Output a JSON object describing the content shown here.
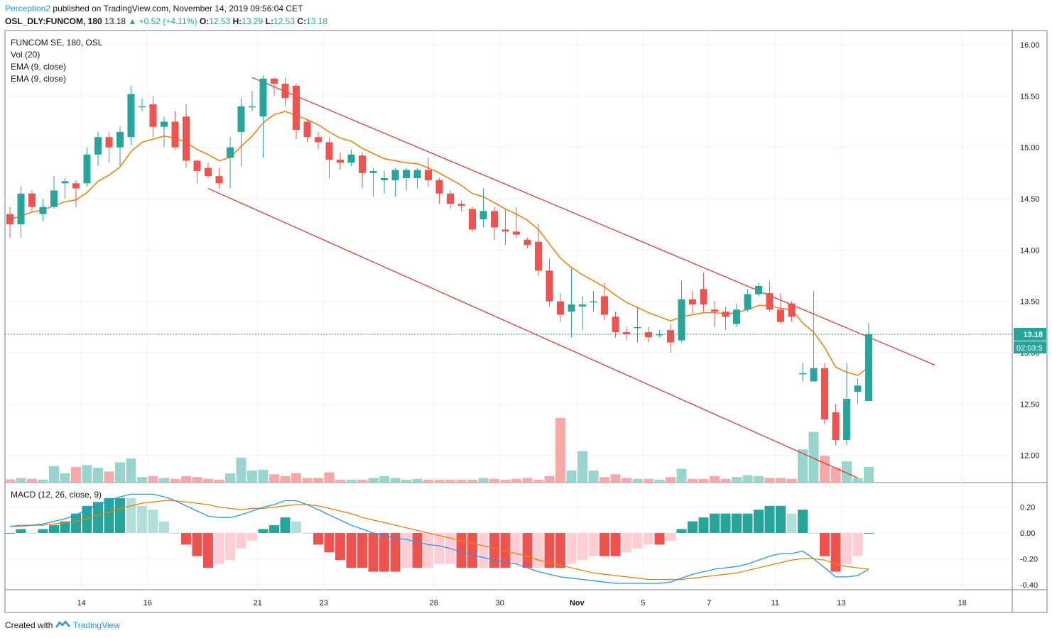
{
  "header": {
    "author": "Perception2",
    "published": "published on TradingView.com, November 14, 2019 09:56:04 CET",
    "symbol": "OSL_DLY:FUNCOM, 180",
    "last": "13.18",
    "change": "+0.52 (+4.11%)",
    "o_label": "O:",
    "o": "12.53",
    "h_label": "H:",
    "h": "13.29",
    "l_label": "L:",
    "l": "12.53",
    "c_label": "C:",
    "c": "13.18"
  },
  "legend": {
    "title": "FUNCOM SE, 180, OSL",
    "vol": "Vol (20)",
    "ema1": "EMA (9, close)",
    "ema2": "EMA (9, close)",
    "macd": "MACD (12, 26, close, 9)"
  },
  "price_badge": "13.18",
  "timer_badge": "02:03:5",
  "footer": {
    "created": "Created with",
    "brand": "TradingView"
  },
  "colors": {
    "up": "#26a69a",
    "down": "#ef5350",
    "ema": "#f57c00",
    "macd": "#2196f3",
    "signal": "#f57c00",
    "channel": "#e53935"
  },
  "chart_data": {
    "type": "candlestick",
    "title": "FUNCOM SE, 180, OSL",
    "ylim": [
      11.75,
      16.1
    ],
    "y_ticks": [
      "16.00",
      "15.50",
      "15.00",
      "14.50",
      "14.00",
      "13.50",
      "13.00",
      "12.50",
      "12.00"
    ],
    "x_ticks": [
      "14",
      "16",
      "21",
      "23",
      "28",
      "30",
      "Nov",
      "5",
      "7",
      "11",
      "13",
      "18"
    ],
    "candles": [
      [
        14.35,
        14.25,
        14.42,
        14.12
      ],
      [
        14.25,
        14.55,
        14.62,
        14.12
      ],
      [
        14.55,
        14.42,
        14.58,
        14.38
      ],
      [
        14.35,
        14.42,
        14.5,
        14.28
      ],
      [
        14.42,
        14.58,
        14.72,
        14.4
      ],
      [
        14.65,
        14.67,
        14.7,
        14.5
      ],
      [
        14.65,
        14.6,
        14.68,
        14.42
      ],
      [
        14.65,
        14.93,
        15.0,
        14.62
      ],
      [
        14.93,
        15.1,
        15.15,
        14.82
      ],
      [
        15.1,
        15.0,
        15.15,
        14.85
      ],
      [
        15.0,
        15.15,
        15.2,
        14.82
      ],
      [
        15.1,
        15.52,
        15.6,
        15.02
      ],
      [
        15.4,
        15.4,
        15.48,
        15.35
      ],
      [
        15.42,
        15.2,
        15.5,
        15.1
      ],
      [
        15.2,
        15.25,
        15.3,
        15.0
      ],
      [
        15.25,
        15.0,
        15.35,
        14.98
      ],
      [
        15.3,
        14.87,
        15.42,
        14.8
      ],
      [
        14.87,
        14.77,
        14.88,
        14.65
      ],
      [
        14.8,
        14.72,
        14.85,
        14.7
      ],
      [
        14.72,
        14.65,
        14.8,
        14.6
      ],
      [
        14.9,
        15.0,
        15.1,
        14.6
      ],
      [
        15.15,
        15.4,
        15.48,
        14.82
      ],
      [
        15.4,
        15.4,
        15.55,
        15.35
      ],
      [
        15.3,
        15.67,
        15.7,
        14.9
      ],
      [
        15.67,
        15.62,
        15.68,
        15.5
      ],
      [
        15.62,
        15.48,
        15.68,
        15.4
      ],
      [
        15.6,
        15.17,
        15.62,
        15.08
      ],
      [
        15.25,
        15.1,
        15.28,
        15.05
      ],
      [
        15.1,
        15.05,
        15.15,
        14.98
      ],
      [
        15.05,
        14.88,
        15.1,
        14.7
      ],
      [
        14.88,
        14.85,
        14.95,
        14.78
      ],
      [
        14.85,
        14.93,
        14.98,
        14.82
      ],
      [
        14.92,
        14.75,
        14.95,
        14.6
      ],
      [
        14.75,
        14.77,
        14.8,
        14.52
      ],
      [
        14.68,
        14.7,
        14.77,
        14.55
      ],
      [
        14.68,
        14.78,
        14.8,
        14.52
      ],
      [
        14.7,
        14.78,
        14.8,
        14.58
      ],
      [
        14.7,
        14.78,
        14.8,
        14.6
      ],
      [
        14.78,
        14.68,
        14.9,
        14.62
      ],
      [
        14.68,
        14.55,
        14.7,
        14.45
      ],
      [
        14.55,
        14.45,
        14.58,
        14.4
      ],
      [
        14.45,
        14.43,
        14.48,
        14.38
      ],
      [
        14.4,
        14.2,
        14.42,
        14.18
      ],
      [
        14.3,
        14.38,
        14.6,
        14.22
      ],
      [
        14.38,
        14.22,
        14.42,
        14.1
      ],
      [
        14.2,
        14.18,
        14.4,
        14.05
      ],
      [
        14.18,
        14.15,
        14.42,
        14.12
      ],
      [
        14.1,
        14.05,
        14.12,
        14.02
      ],
      [
        14.08,
        13.8,
        14.25,
        13.75
      ],
      [
        13.8,
        13.5,
        13.92,
        13.45
      ],
      [
        13.5,
        13.37,
        13.58,
        13.3
      ],
      [
        13.4,
        13.47,
        13.82,
        13.15
      ],
      [
        13.45,
        13.47,
        13.55,
        13.22
      ],
      [
        13.5,
        13.5,
        13.6,
        13.4
      ],
      [
        13.55,
        13.37,
        13.68,
        13.32
      ],
      [
        13.35,
        13.2,
        13.4,
        13.15
      ],
      [
        13.2,
        13.18,
        13.25,
        13.12
      ],
      [
        13.25,
        13.25,
        13.45,
        13.1
      ],
      [
        13.2,
        13.15,
        13.25,
        13.1
      ],
      [
        13.17,
        13.18,
        13.22,
        13.15
      ],
      [
        13.22,
        13.1,
        13.28,
        13.0
      ],
      [
        13.12,
        13.52,
        13.7,
        13.1
      ],
      [
        13.52,
        13.47,
        13.6,
        13.38
      ],
      [
        13.62,
        13.47,
        13.78,
        13.4
      ],
      [
        13.42,
        13.4,
        13.5,
        13.25
      ],
      [
        13.4,
        13.35,
        13.45,
        13.22
      ],
      [
        13.28,
        13.42,
        13.48,
        13.25
      ],
      [
        13.42,
        13.57,
        13.62,
        13.4
      ],
      [
        13.57,
        13.65,
        13.68,
        13.55
      ],
      [
        13.58,
        13.42,
        13.7,
        13.4
      ],
      [
        13.42,
        13.3,
        13.58,
        13.28
      ],
      [
        13.48,
        13.35,
        13.5,
        13.3
      ],
      [
        12.8,
        12.8,
        12.9,
        12.72
      ],
      [
        12.72,
        12.85,
        13.6,
        12.72
      ],
      [
        12.85,
        12.35,
        12.9,
        12.3
      ],
      [
        12.42,
        12.15,
        12.5,
        12.1
      ],
      [
        12.15,
        12.55,
        12.9,
        12.1
      ],
      [
        12.62,
        12.68,
        12.75,
        12.5
      ],
      [
        12.53,
        13.18,
        13.29,
        12.53
      ]
    ],
    "volume": [
      0.35,
      0.5,
      0.4,
      0.32,
      1.8,
      1.0,
      1.7,
      1.9,
      1.6,
      1.2,
      2.2,
      2.6,
      0.6,
      0.7,
      0.5,
      0.4,
      0.7,
      0.6,
      0.4,
      0.3,
      1.0,
      2.7,
      1.3,
      1.4,
      0.9,
      0.7,
      1.0,
      0.5,
      0.5,
      1.1,
      0.3,
      0.3,
      0.3,
      0.5,
      0.7,
      0.5,
      0.3,
      0.4,
      0.3,
      0.3,
      0.3,
      0.3,
      0.3,
      0.5,
      0.4,
      0.3,
      0.4,
      0.5,
      0.3,
      0.7,
      7.0,
      1.3,
      3.4,
      1.3,
      0.6,
      0.9,
      0.5,
      0.4,
      0.4,
      0.3,
      0.6,
      1.5,
      0.4,
      0.4,
      0.7,
      0.4,
      0.6,
      0.8,
      0.7,
      0.5,
      0.5,
      0.4,
      3.6,
      5.5,
      2.9,
      1.6,
      2.3,
      0.5,
      1.7
    ],
    "ema": [
      14.3,
      14.33,
      14.37,
      14.39,
      14.43,
      14.47,
      14.49,
      14.56,
      14.67,
      14.73,
      14.81,
      14.96,
      15.05,
      15.08,
      15.11,
      15.09,
      15.05,
      14.98,
      14.93,
      14.87,
      14.9,
      15.01,
      15.11,
      15.24,
      15.32,
      15.35,
      15.31,
      15.27,
      15.22,
      15.15,
      15.09,
      15.06,
      14.99,
      14.94,
      14.89,
      14.87,
      14.85,
      14.84,
      14.8,
      14.75,
      14.69,
      14.63,
      14.55,
      14.52,
      14.46,
      14.4,
      14.35,
      14.29,
      14.2,
      14.06,
      13.92,
      13.83,
      13.76,
      13.7,
      13.64,
      13.56,
      13.49,
      13.44,
      13.39,
      13.35,
      13.31,
      13.35,
      13.37,
      13.39,
      13.39,
      13.38,
      13.39,
      13.42,
      13.46,
      13.46,
      13.43,
      13.42,
      13.29,
      13.2,
      13.05,
      12.86,
      12.81,
      12.78,
      12.86
    ],
    "macd": [
      0.05,
      0.06,
      0.06,
      0.07,
      0.09,
      0.11,
      0.14,
      0.18,
      0.22,
      0.25,
      0.28,
      0.3,
      0.3,
      0.3,
      0.28,
      0.25,
      0.21,
      0.17,
      0.13,
      0.12,
      0.12,
      0.14,
      0.17,
      0.2,
      0.22,
      0.25,
      0.25,
      0.22,
      0.18,
      0.14,
      0.1,
      0.06,
      0.03,
      0.0,
      -0.02,
      -0.04,
      -0.05,
      -0.07,
      -0.09,
      -0.1,
      -0.12,
      -0.15,
      -0.17,
      -0.19,
      -0.21,
      -0.23,
      -0.24,
      -0.27,
      -0.3,
      -0.32,
      -0.34,
      -0.35,
      -0.36,
      -0.37,
      -0.38,
      -0.39,
      -0.39,
      -0.39,
      -0.39,
      -0.39,
      -0.38,
      -0.35,
      -0.32,
      -0.3,
      -0.28,
      -0.27,
      -0.26,
      -0.24,
      -0.21,
      -0.18,
      -0.16,
      -0.16,
      -0.14,
      -0.2,
      -0.27,
      -0.34,
      -0.34,
      -0.33,
      -0.28
    ],
    "signal": [
      0.05,
      0.05,
      0.06,
      0.06,
      0.07,
      0.08,
      0.09,
      0.11,
      0.14,
      0.16,
      0.19,
      0.21,
      0.23,
      0.24,
      0.25,
      0.25,
      0.24,
      0.23,
      0.22,
      0.2,
      0.19,
      0.18,
      0.19,
      0.19,
      0.2,
      0.21,
      0.22,
      0.22,
      0.21,
      0.19,
      0.17,
      0.15,
      0.12,
      0.1,
      0.08,
      0.06,
      0.04,
      0.02,
      0.0,
      -0.02,
      -0.04,
      -0.06,
      -0.08,
      -0.1,
      -0.12,
      -0.14,
      -0.16,
      -0.18,
      -0.21,
      -0.23,
      -0.25,
      -0.27,
      -0.29,
      -0.31,
      -0.32,
      -0.33,
      -0.34,
      -0.35,
      -0.36,
      -0.36,
      -0.36,
      -0.36,
      -0.35,
      -0.34,
      -0.33,
      -0.32,
      -0.31,
      -0.29,
      -0.27,
      -0.25,
      -0.23,
      -0.21,
      -0.2,
      -0.2,
      -0.21,
      -0.24,
      -0.26,
      -0.27,
      -0.28
    ],
    "macd_ylim": [
      -0.45,
      0.38
    ],
    "macd_ticks": [
      "0.20",
      "0.00",
      "-0.20",
      "-0.40"
    ],
    "channel_upper": [
      [
        22,
        15.68
      ],
      [
        84,
        12.88
      ]
    ],
    "channel_lower": [
      [
        18,
        14.6
      ],
      [
        77,
        11.78
      ]
    ]
  }
}
